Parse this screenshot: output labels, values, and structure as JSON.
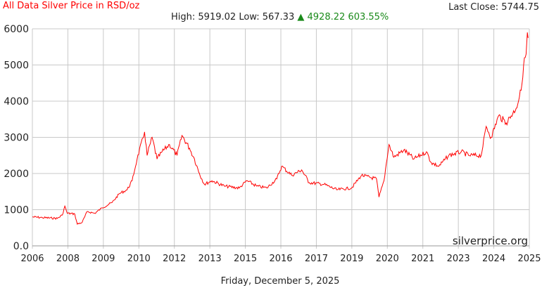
{
  "chart_data": {
    "type": "line",
    "title": "All Data Silver Price in RSD/oz",
    "last_close_label": "Last Close:",
    "last_close": "5744.75",
    "high_label": "High:",
    "high": "5919.02",
    "low_label": "Low:",
    "low": "567.33",
    "change": "4928.22",
    "change_pct": "603.55%",
    "change_icon": "up-triangle-icon",
    "watermark": "silverprice.org",
    "date": "Friday, December 5, 2025",
    "xlabel": "",
    "ylabel": "",
    "ylim": [
      0,
      6000
    ],
    "xlim": [
      2006.0,
      2025.93
    ],
    "y_ticks": [
      "0.0",
      "1000",
      "2000",
      "3000",
      "4000",
      "5000",
      "6000"
    ],
    "x_tick_labels": [
      "2006",
      "2008",
      "2009",
      "2010",
      "2012",
      "2013",
      "2015",
      "2016",
      "2017",
      "2019",
      "2020",
      "2021",
      "2023",
      "2024",
      "2025"
    ],
    "grid": true,
    "line_color": "#ff0000",
    "series": [
      {
        "name": "Silver RSD/oz",
        "x": [
          2006.0,
          2006.4,
          2007.0,
          2007.2,
          2007.3,
          2007.4,
          2007.7,
          2007.8,
          2008.0,
          2008.2,
          2008.5,
          2008.8,
          2009.2,
          2009.5,
          2009.8,
          2010.0,
          2010.2,
          2010.5,
          2010.6,
          2010.8,
          2011.0,
          2011.2,
          2011.5,
          2011.8,
          2012.0,
          2012.3,
          2012.5,
          2012.7,
          2012.9,
          2013.2,
          2013.7,
          2014.3,
          2014.6,
          2015.0,
          2015.4,
          2015.8,
          2016.0,
          2016.4,
          2016.8,
          2017.1,
          2017.7,
          2018.2,
          2018.8,
          2019.2,
          2019.8,
          2019.9,
          2020.1,
          2020.3,
          2020.5,
          2020.9,
          2021.3,
          2021.8,
          2022.0,
          2022.3,
          2022.7,
          2023.2,
          2023.5,
          2024.0,
          2024.2,
          2024.4,
          2024.7,
          2025.0,
          2025.4,
          2025.6,
          2025.7,
          2025.8,
          2025.85,
          2025.88
        ],
        "values": [
          800,
          780,
          760,
          850,
          1100,
          900,
          880,
          600,
          650,
          950,
          900,
          1050,
          1200,
          1450,
          1550,
          1800,
          2400,
          3150,
          2500,
          3000,
          2400,
          2600,
          2800,
          2500,
          3050,
          2700,
          2400,
          2000,
          1700,
          1800,
          1650,
          1600,
          1800,
          1650,
          1600,
          1850,
          2200,
          1950,
          2100,
          1750,
          1700,
          1550,
          1600,
          1950,
          1850,
          1350,
          1800,
          2800,
          2450,
          2650,
          2400,
          2600,
          2300,
          2200,
          2500,
          2600,
          2500,
          2500,
          3300,
          3000,
          3600,
          3400,
          3800,
          4300,
          5000,
          5300,
          5900,
          5745
        ]
      }
    ]
  }
}
